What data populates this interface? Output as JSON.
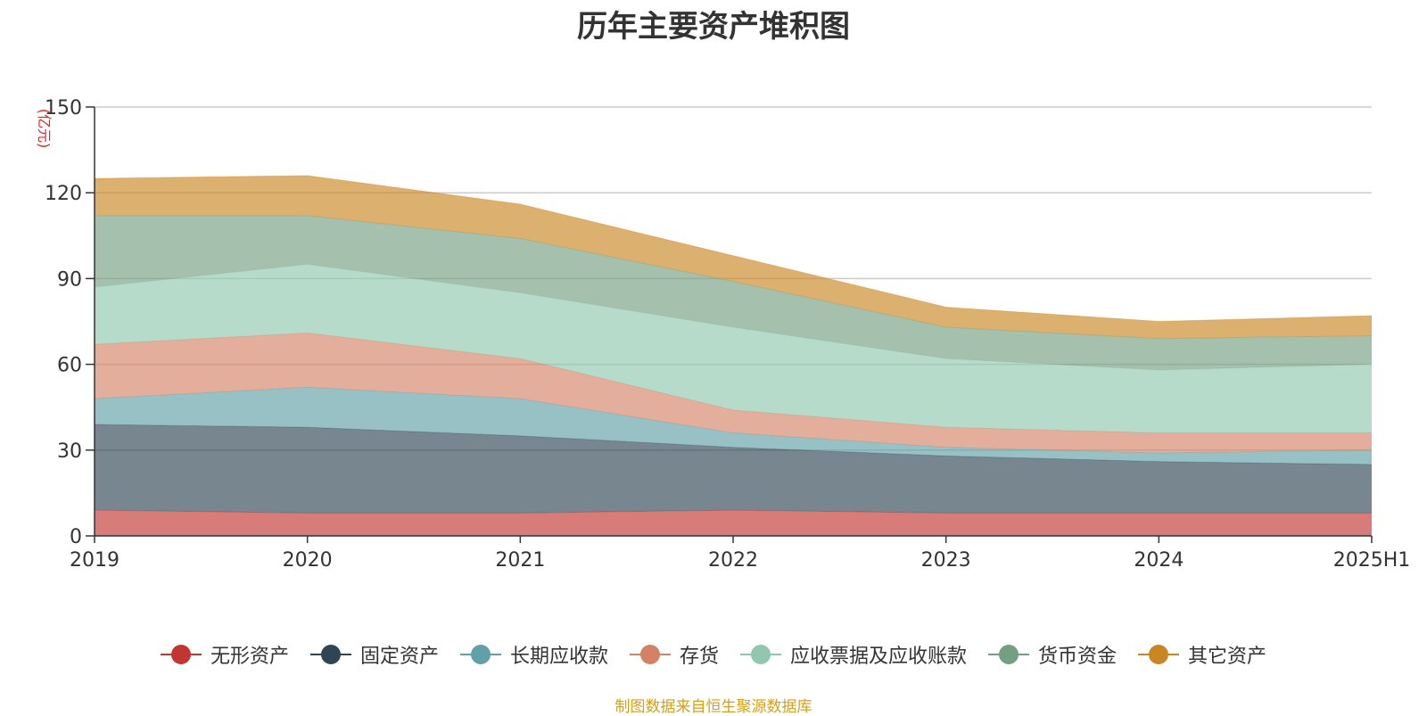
{
  "title": "历年主要资产堆积图",
  "source_note": "制图数据来自恒生聚源数据库",
  "chart_data": {
    "type": "area",
    "stacked": true,
    "title": "历年主要资产堆积图",
    "ylabel": "(亿元)",
    "xlabel": "",
    "ylim": [
      0,
      150
    ],
    "yticks": [
      0,
      30,
      60,
      90,
      120,
      150
    ],
    "grid": true,
    "legend_position": "bottom",
    "categories": [
      "2019",
      "2020",
      "2021",
      "2022",
      "2023",
      "2024",
      "2025H1"
    ],
    "series": [
      {
        "name": "无形资产",
        "color": "#c23531",
        "values": [
          9,
          8,
          8,
          9,
          8,
          8,
          8
        ]
      },
      {
        "name": "固定资产",
        "color": "#2f4554",
        "values": [
          30,
          30,
          27,
          22,
          20,
          18,
          17
        ]
      },
      {
        "name": "长期应收款",
        "color": "#61a0a8",
        "values": [
          9,
          14,
          13,
          5,
          3,
          3,
          5
        ]
      },
      {
        "name": "存货",
        "color": "#d48265",
        "values": [
          19,
          19,
          14,
          8,
          7,
          7,
          6
        ]
      },
      {
        "name": "应收票据及应收账款",
        "color": "#91c7ae",
        "values": [
          20,
          24,
          23,
          29,
          24,
          22,
          24
        ]
      },
      {
        "name": "货币资金",
        "color": "#749f83",
        "values": [
          25,
          17,
          19,
          16,
          11,
          11,
          10
        ]
      },
      {
        "name": "其它资产",
        "color": "#ca8622",
        "values": [
          13,
          14,
          12,
          9,
          7,
          6,
          7
        ]
      }
    ]
  }
}
